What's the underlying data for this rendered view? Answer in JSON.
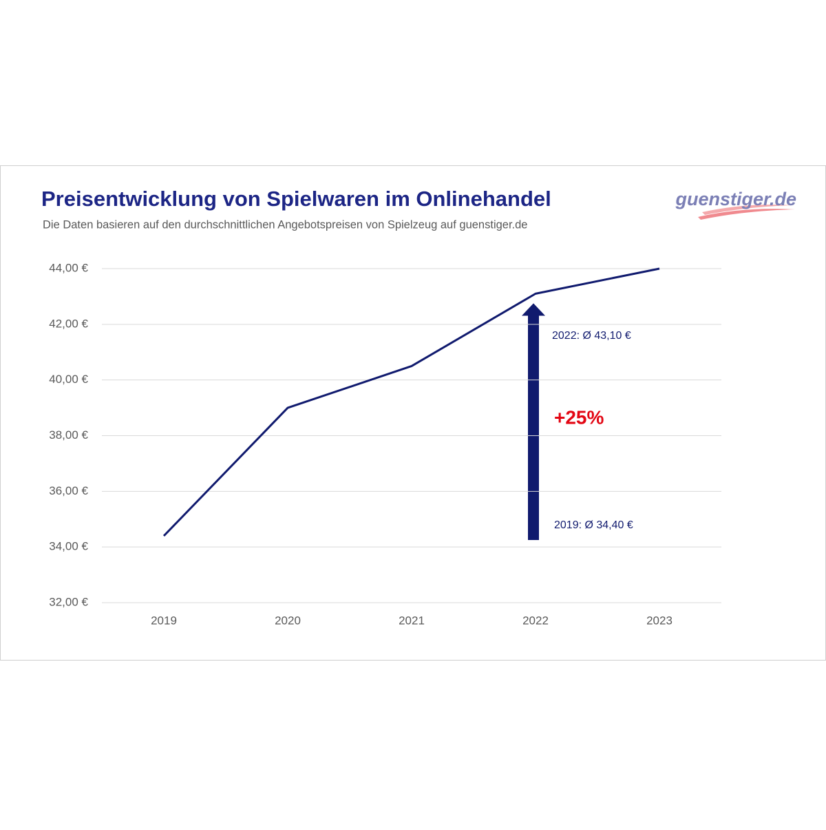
{
  "chart_data": {
    "type": "line",
    "title": "Preisentwicklung von Spielwaren im Onlinehandel",
    "subtitle": "Die Daten basieren auf den durchschnittlichen Angebotspreisen von Spielzeug auf guenstiger.de",
    "logo": "guenstiger.de",
    "categories": [
      "2019",
      "2020",
      "2021",
      "2022",
      "2023"
    ],
    "values": [
      34.4,
      39.0,
      40.5,
      43.1,
      44.0
    ],
    "color": "#101a6e",
    "ylim": [
      32,
      44
    ],
    "yticks": [
      {
        "value": 32,
        "label": "32,00 €"
      },
      {
        "value": 34,
        "label": "34,00 €"
      },
      {
        "value": 36,
        "label": "36,00 €"
      },
      {
        "value": 38,
        "label": "38,00 €"
      },
      {
        "value": 40,
        "label": "40,00 €"
      },
      {
        "value": 42,
        "label": "42,00 €"
      },
      {
        "value": 44,
        "label": "44,00 €"
      }
    ],
    "grid": true,
    "annotations": [
      "2022: Ø 43,10 €",
      "+25%",
      "2019: Ø 34,40 €"
    ]
  }
}
